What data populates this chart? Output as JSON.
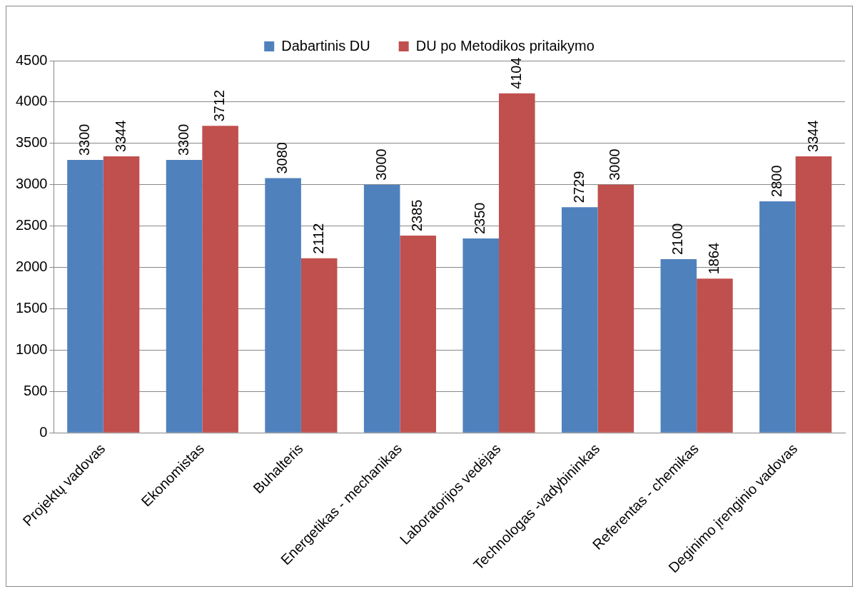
{
  "chart_data": {
    "type": "bar",
    "categories": [
      "Projektų vadovas",
      "Ekonomistas",
      "Buhalteris",
      "Energetikas - mechanikas",
      "Laboratorijos vedėjas",
      "Technologas -vadybininkas",
      "Referentas - chemikas",
      "Deginimo įrenginio vadovas"
    ],
    "series": [
      {
        "name": "Dabartinis DU",
        "color": "#4f81bd",
        "values": [
          3300,
          3300,
          3080,
          3000,
          2350,
          2729,
          2100,
          2800
        ]
      },
      {
        "name": "DU po Metodikos pritaikymo",
        "color": "#c0504d",
        "values": [
          3344,
          3712,
          2112,
          2385,
          4104,
          3000,
          1864,
          3344
        ]
      }
    ],
    "ylim": [
      0,
      4500
    ],
    "yticks": [
      0,
      500,
      1000,
      1500,
      2000,
      2500,
      3000,
      3500,
      4000,
      4500
    ],
    "grid": "y",
    "legend": "top",
    "data_labels": true
  }
}
